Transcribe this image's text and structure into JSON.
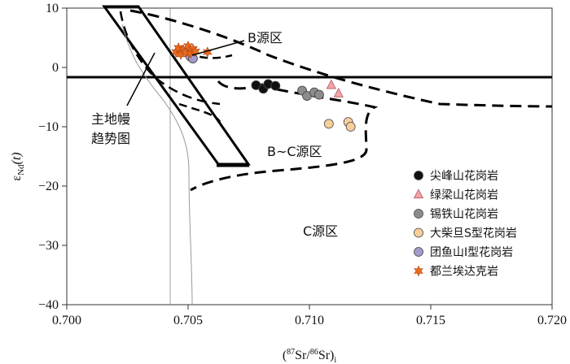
{
  "chart_data": {
    "type": "scatter",
    "title": "",
    "xlabel": "(87Sr/86Sr)i",
    "ylabel": "εNd(t)",
    "xlim": [
      0.7,
      0.72
    ],
    "ylim": [
      -40,
      10
    ],
    "x_ticks": [
      "0.700",
      "0.705",
      "0.710",
      "0.715",
      "0.720"
    ],
    "y_ticks": [
      "10",
      "0",
      "−10",
      "−20",
      "−30",
      "−40"
    ],
    "grid": false,
    "legend_position": "bottom-right",
    "annotations": {
      "b_source": "B源区",
      "bc_source": "B~C源区",
      "c_source": "C源区",
      "mantle_trend_line1": "主地幔",
      "mantle_trend_line2": "趋势图"
    },
    "series": [
      {
        "name": "尖峰山花岗岩",
        "marker": "circle",
        "color": "#111111",
        "points": [
          [
            0.7078,
            -3.0
          ],
          [
            0.7081,
            -3.6
          ],
          [
            0.7083,
            -2.8
          ],
          [
            0.7086,
            -3.1
          ]
        ]
      },
      {
        "name": "绿梁山花岗岩",
        "marker": "triangle",
        "color": "#f2a3a8",
        "points": [
          [
            0.7109,
            -3.0
          ],
          [
            0.7112,
            -4.4
          ]
        ]
      },
      {
        "name": "锡铁山花岗岩",
        "marker": "circle",
        "color": "#8c8c8c",
        "points": [
          [
            0.7097,
            -3.9
          ],
          [
            0.7099,
            -4.8
          ],
          [
            0.7102,
            -4.2
          ],
          [
            0.7104,
            -4.6
          ]
        ]
      },
      {
        "name": "大柴旦S型花岗岩",
        "marker": "circle",
        "color": "#f8cf9c",
        "points": [
          [
            0.7108,
            -9.5
          ],
          [
            0.7116,
            -9.2
          ],
          [
            0.7117,
            -10.0
          ]
        ]
      },
      {
        "name": "团鱼山I型花岗岩",
        "marker": "circle",
        "color": "#a49acb",
        "points": [
          [
            0.7051,
            1.8
          ],
          [
            0.7052,
            1.5
          ]
        ]
      },
      {
        "name": "都兰埃达克岩",
        "marker": "star",
        "color": "#ec6a1e",
        "points": [
          [
            0.7045,
            2.6
          ],
          [
            0.7046,
            3.3
          ],
          [
            0.7047,
            2.2
          ],
          [
            0.7048,
            3.0
          ],
          [
            0.7049,
            2.6
          ],
          [
            0.705,
            3.6
          ],
          [
            0.7051,
            2.4
          ],
          [
            0.7052,
            3.1
          ],
          [
            0.7053,
            2.7
          ],
          [
            0.7058,
            2.6
          ]
        ]
      }
    ]
  },
  "colors": {
    "axis": "#111111",
    "frame": "#333333"
  }
}
